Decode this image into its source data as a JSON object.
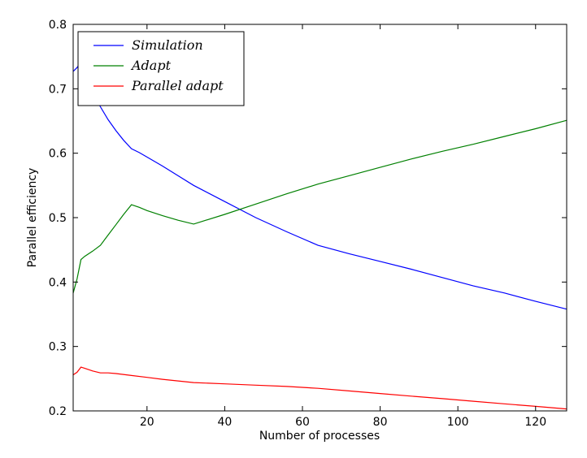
{
  "chart_data": {
    "type": "line",
    "xlabel": "Number of processes",
    "ylabel": "Parallel efficiency",
    "xlim": [
      1,
      128
    ],
    "ylim": [
      0.2,
      0.8
    ],
    "x_ticks": [
      20,
      40,
      60,
      80,
      100,
      120
    ],
    "y_ticks": [
      0.2,
      0.3,
      0.4,
      0.5,
      0.6,
      0.7,
      0.8
    ],
    "grid": false,
    "legend_position": "top-left",
    "series": [
      {
        "name": "Simulation",
        "color": "#0000ff",
        "x": [
          1,
          2,
          3,
          4,
          5,
          6,
          8,
          10,
          12,
          14,
          16,
          18,
          20,
          24,
          28,
          32,
          40,
          48,
          56,
          64,
          72,
          80,
          88,
          96,
          104,
          112,
          120,
          128
        ],
        "y": [
          0.727,
          0.733,
          0.742,
          0.728,
          0.71,
          0.692,
          0.672,
          0.652,
          0.635,
          0.62,
          0.607,
          0.601,
          0.594,
          0.58,
          0.565,
          0.55,
          0.525,
          0.5,
          0.478,
          0.457,
          0.444,
          0.432,
          0.42,
          0.407,
          0.394,
          0.383,
          0.37,
          0.358
        ]
      },
      {
        "name": "Adapt",
        "color": "#008000",
        "x": [
          1,
          2,
          3,
          4,
          6,
          8,
          10,
          12,
          14,
          16,
          18,
          20,
          24,
          28,
          32,
          40,
          48,
          56,
          64,
          72,
          80,
          88,
          96,
          104,
          112,
          120,
          128
        ],
        "y": [
          0.383,
          0.405,
          0.435,
          0.44,
          0.448,
          0.457,
          0.473,
          0.489,
          0.505,
          0.52,
          0.516,
          0.511,
          0.503,
          0.496,
          0.49,
          0.505,
          0.521,
          0.537,
          0.552,
          0.565,
          0.578,
          0.591,
          0.603,
          0.614,
          0.626,
          0.638,
          0.651
        ]
      },
      {
        "name": "Parallel adapt",
        "color": "#ff0000",
        "x": [
          1,
          2,
          3,
          4,
          6,
          8,
          10,
          12,
          16,
          20,
          24,
          32,
          40,
          48,
          56,
          64,
          72,
          80,
          88,
          96,
          104,
          112,
          120,
          128
        ],
        "y": [
          0.256,
          0.26,
          0.268,
          0.266,
          0.262,
          0.259,
          0.259,
          0.258,
          0.255,
          0.252,
          0.249,
          0.244,
          0.242,
          0.24,
          0.238,
          0.235,
          0.231,
          0.227,
          0.223,
          0.219,
          0.215,
          0.211,
          0.207,
          0.203
        ]
      }
    ]
  }
}
